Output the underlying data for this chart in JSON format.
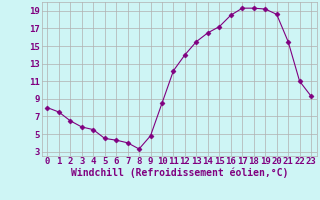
{
  "x": [
    0,
    1,
    2,
    3,
    4,
    5,
    6,
    7,
    8,
    9,
    10,
    11,
    12,
    13,
    14,
    15,
    16,
    17,
    18,
    19,
    20,
    21,
    22,
    23
  ],
  "y": [
    8.0,
    7.5,
    6.5,
    5.8,
    5.5,
    4.5,
    4.3,
    4.0,
    3.3,
    4.8,
    8.5,
    12.2,
    14.0,
    15.5,
    16.5,
    17.2,
    18.5,
    19.3,
    19.3,
    19.2,
    18.6,
    15.5,
    11.0,
    9.3
  ],
  "line_color": "#800080",
  "marker": "D",
  "marker_size": 2.5,
  "bg_color": "#cef5f5",
  "grid_color": "#b0b0b0",
  "xlabel": "Windchill (Refroidissement éolien,°C)",
  "ylabel": "",
  "xlim": [
    -0.5,
    23.5
  ],
  "ylim_min": 2.5,
  "ylim_max": 20.0,
  "yticks": [
    3,
    5,
    7,
    9,
    11,
    13,
    15,
    17,
    19
  ],
  "xticks": [
    0,
    1,
    2,
    3,
    4,
    5,
    6,
    7,
    8,
    9,
    10,
    11,
    12,
    13,
    14,
    15,
    16,
    17,
    18,
    19,
    20,
    21,
    22,
    23
  ],
  "xlabel_color": "#800080",
  "tick_color": "#800080",
  "font_size_xlabel": 7,
  "font_size_ticks": 6.5
}
